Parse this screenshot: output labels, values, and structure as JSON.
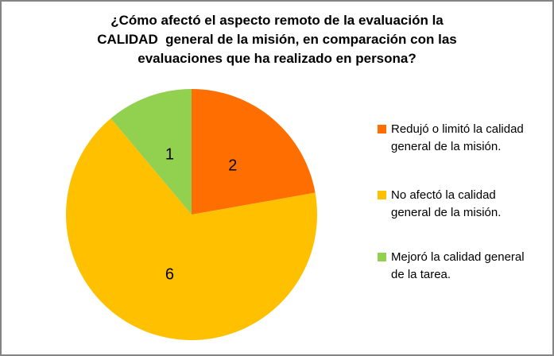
{
  "chart_data": {
    "type": "pie",
    "title": "¿Cómo afectó el aspecto remoto de la evaluación la CALIDAD  general de la misión, en comparación con las evaluaciones que ha realizado en persona?",
    "title_lines": [
      "¿Cómo afectó el aspecto remoto de la evaluación la",
      "CALIDAD  general de la misión, en comparación con las",
      "evaluaciones que ha realizado en persona?"
    ],
    "slices": [
      {
        "label": "Redujó o limitó la calidad general de la misión.",
        "value": 2,
        "color": "#FF6E00"
      },
      {
        "label": "No afectó la calidad general de la misión.",
        "value": 6,
        "color": "#FFC000"
      },
      {
        "label": "Mejoró la calidad general de la tarea.",
        "value": 1,
        "color": "#92D050"
      }
    ],
    "total": 9,
    "start_angle_deg": 0,
    "direction": "clockwise",
    "data_labels": "values",
    "legend_position": "right",
    "background_color": "#FFFFFF",
    "border_color": "#848484",
    "text_color": "#000000"
  }
}
